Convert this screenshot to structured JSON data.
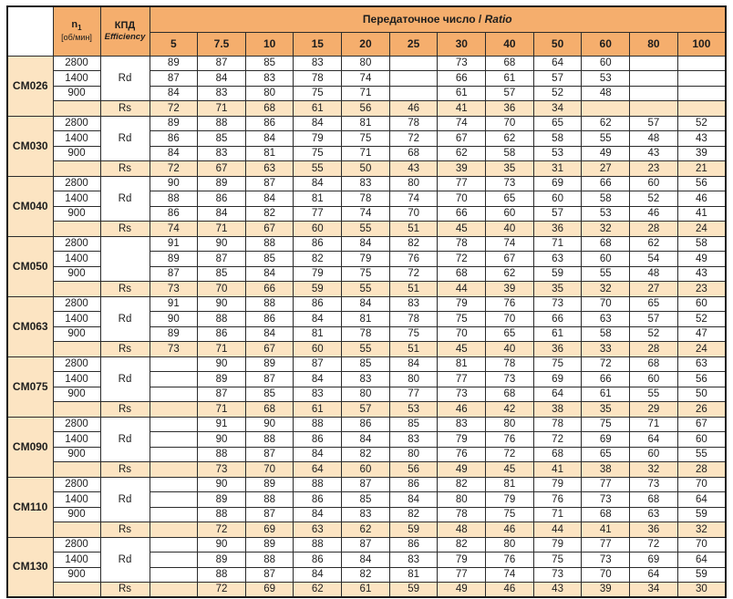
{
  "colors": {
    "header_orange": "#F5AE6D",
    "row_peach": "#FCE4C2",
    "grid": "#2b2b2b",
    "text": "#1d1d1d"
  },
  "table": {
    "header": {
      "n1": "n",
      "n1_sub": "1",
      "n1_unit": "[об/мин]",
      "kpd": "КПД",
      "kpd_en": "Efficiency",
      "ratio_ru": "Передаточное число / ",
      "ratio_en": "Ratio"
    },
    "ratios": [
      "5",
      "7.5",
      "10",
      "15",
      "20",
      "25",
      "30",
      "40",
      "50",
      "60",
      "80",
      "100"
    ],
    "models": [
      {
        "name": "CM026",
        "rd_label": "Rd",
        "rs_label": "Rs",
        "speeds": [
          "2800",
          "1400",
          "900"
        ],
        "speed_rows": [
          [
            "89",
            "87",
            "85",
            "83",
            "80",
            "",
            "73",
            "68",
            "64",
            "60",
            "",
            ""
          ],
          [
            "87",
            "84",
            "83",
            "78",
            "74",
            "",
            "66",
            "61",
            "57",
            "53",
            "",
            ""
          ],
          [
            "84",
            "83",
            "80",
            "75",
            "71",
            "",
            "61",
            "57",
            "52",
            "48",
            "",
            ""
          ]
        ],
        "rs_values": [
          "72",
          "71",
          "68",
          "61",
          "56",
          "46",
          "41",
          "36",
          "34",
          "",
          "",
          ""
        ]
      },
      {
        "name": "CM030",
        "rd_label": "Rd",
        "rs_label": "Rs",
        "speeds": [
          "2800",
          "1400",
          "900"
        ],
        "speed_rows": [
          [
            "89",
            "88",
            "86",
            "84",
            "81",
            "78",
            "74",
            "70",
            "65",
            "62",
            "57",
            "52"
          ],
          [
            "86",
            "85",
            "84",
            "79",
            "75",
            "72",
            "67",
            "62",
            "58",
            "55",
            "48",
            "43"
          ],
          [
            "84",
            "83",
            "81",
            "75",
            "71",
            "68",
            "62",
            "58",
            "53",
            "49",
            "43",
            "39"
          ]
        ],
        "rs_values": [
          "72",
          "67",
          "63",
          "55",
          "50",
          "43",
          "39",
          "35",
          "31",
          "27",
          "23",
          "21"
        ]
      },
      {
        "name": "CM040",
        "rd_label": "Rd",
        "rs_label": "Rs",
        "speeds": [
          "2800",
          "1400",
          "900"
        ],
        "speed_rows": [
          [
            "90",
            "89",
            "87",
            "84",
            "83",
            "80",
            "77",
            "73",
            "69",
            "66",
            "60",
            "56"
          ],
          [
            "88",
            "86",
            "84",
            "81",
            "78",
            "74",
            "70",
            "65",
            "60",
            "58",
            "52",
            "46"
          ],
          [
            "86",
            "84",
            "82",
            "77",
            "74",
            "70",
            "66",
            "60",
            "57",
            "53",
            "46",
            "41"
          ]
        ],
        "rs_values": [
          "74",
          "71",
          "67",
          "60",
          "55",
          "51",
          "45",
          "40",
          "36",
          "32",
          "28",
          "24"
        ]
      },
      {
        "name": "CM050",
        "rd_label": "",
        "rs_label": "Rs",
        "speeds": [
          "2800",
          "1400",
          "900"
        ],
        "speed_rows": [
          [
            "91",
            "90",
            "88",
            "86",
            "84",
            "82",
            "78",
            "74",
            "71",
            "68",
            "62",
            "58"
          ],
          [
            "89",
            "87",
            "85",
            "82",
            "79",
            "76",
            "72",
            "67",
            "63",
            "60",
            "54",
            "49"
          ],
          [
            "87",
            "85",
            "84",
            "79",
            "75",
            "72",
            "68",
            "62",
            "59",
            "55",
            "48",
            "43"
          ]
        ],
        "rs_values": [
          "73",
          "70",
          "66",
          "59",
          "55",
          "51",
          "44",
          "39",
          "35",
          "32",
          "27",
          "23"
        ]
      },
      {
        "name": "CM063",
        "rd_label": "Rd",
        "rs_label": "Rs",
        "speeds": [
          "2800",
          "1400",
          "900"
        ],
        "speed_rows": [
          [
            "91",
            "90",
            "88",
            "86",
            "84",
            "83",
            "79",
            "76",
            "73",
            "70",
            "65",
            "60"
          ],
          [
            "90",
            "88",
            "86",
            "84",
            "81",
            "78",
            "75",
            "70",
            "66",
            "63",
            "57",
            "52"
          ],
          [
            "89",
            "86",
            "84",
            "81",
            "78",
            "75",
            "70",
            "65",
            "61",
            "58",
            "52",
            "47"
          ]
        ],
        "rs_values": [
          "73",
          "71",
          "67",
          "60",
          "55",
          "51",
          "45",
          "40",
          "36",
          "33",
          "28",
          "24"
        ]
      },
      {
        "name": "CM075",
        "rd_label": "Rd",
        "rs_label": "Rs",
        "speeds": [
          "2800",
          "1400",
          "900"
        ],
        "speed_rows": [
          [
            "",
            "90",
            "89",
            "87",
            "85",
            "84",
            "81",
            "78",
            "75",
            "72",
            "68",
            "63"
          ],
          [
            "",
            "89",
            "87",
            "84",
            "83",
            "80",
            "77",
            "73",
            "69",
            "66",
            "60",
            "56"
          ],
          [
            "",
            "87",
            "85",
            "83",
            "80",
            "77",
            "73",
            "68",
            "64",
            "61",
            "55",
            "50"
          ]
        ],
        "rs_values": [
          "",
          "71",
          "68",
          "61",
          "57",
          "53",
          "46",
          "42",
          "38",
          "35",
          "29",
          "26"
        ]
      },
      {
        "name": "CM090",
        "rd_label": "Rd",
        "rs_label": "Rs",
        "speeds": [
          "2800",
          "1400",
          "900"
        ],
        "speed_rows": [
          [
            "",
            "91",
            "90",
            "88",
            "86",
            "85",
            "83",
            "80",
            "78",
            "75",
            "71",
            "67"
          ],
          [
            "",
            "90",
            "88",
            "86",
            "84",
            "83",
            "79",
            "76",
            "72",
            "69",
            "64",
            "60"
          ],
          [
            "",
            "88",
            "87",
            "84",
            "82",
            "80",
            "76",
            "72",
            "68",
            "65",
            "60",
            "55"
          ]
        ],
        "rs_values": [
          "",
          "73",
          "70",
          "64",
          "60",
          "56",
          "49",
          "45",
          "41",
          "38",
          "32",
          "28"
        ]
      },
      {
        "name": "CM110",
        "rd_label": "Rd",
        "rs_label": "Rs",
        "speeds": [
          "2800",
          "1400",
          "900"
        ],
        "speed_rows": [
          [
            "",
            "90",
            "89",
            "88",
            "87",
            "86",
            "82",
            "81",
            "79",
            "77",
            "73",
            "70"
          ],
          [
            "",
            "89",
            "88",
            "86",
            "85",
            "84",
            "80",
            "79",
            "76",
            "73",
            "68",
            "64"
          ],
          [
            "",
            "88",
            "87",
            "84",
            "83",
            "82",
            "78",
            "75",
            "71",
            "68",
            "63",
            "59"
          ]
        ],
        "rs_values": [
          "",
          "72",
          "69",
          "63",
          "62",
          "59",
          "48",
          "46",
          "44",
          "41",
          "36",
          "32"
        ]
      },
      {
        "name": "CM130",
        "rd_label": "Rd",
        "rs_label": "Rs",
        "speeds": [
          "2800",
          "1400",
          "900"
        ],
        "speed_rows": [
          [
            "",
            "90",
            "89",
            "88",
            "87",
            "86",
            "82",
            "80",
            "79",
            "77",
            "72",
            "70"
          ],
          [
            "",
            "89",
            "88",
            "86",
            "84",
            "83",
            "79",
            "76",
            "75",
            "73",
            "69",
            "64"
          ],
          [
            "",
            "88",
            "87",
            "84",
            "82",
            "81",
            "77",
            "74",
            "73",
            "70",
            "64",
            "59"
          ]
        ],
        "rs_values": [
          "",
          "72",
          "69",
          "62",
          "61",
          "59",
          "49",
          "46",
          "43",
          "39",
          "34",
          "30"
        ]
      }
    ]
  }
}
